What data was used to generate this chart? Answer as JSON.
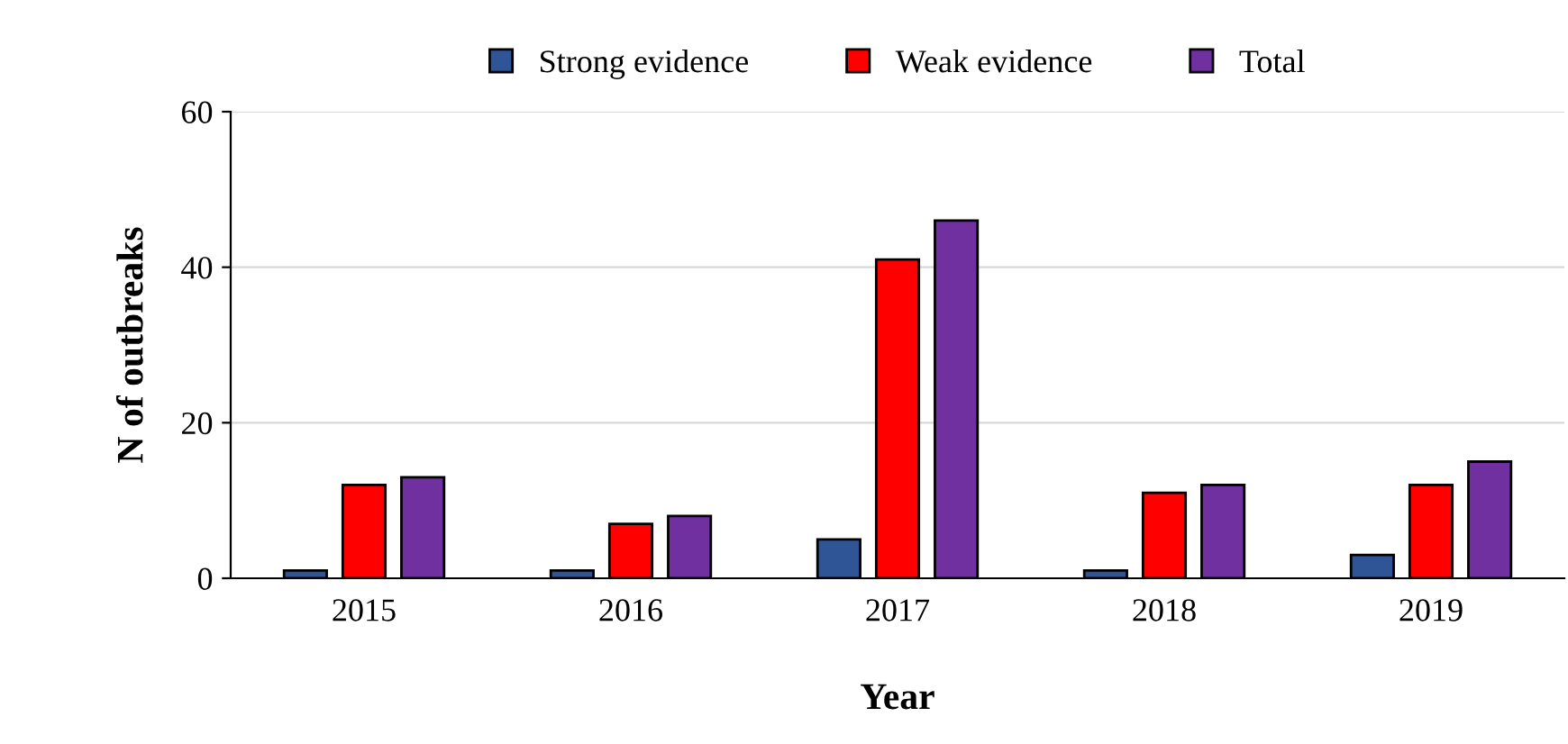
{
  "chart_data": {
    "type": "bar",
    "xlabel": "Year",
    "ylabel": "N of outbreaks",
    "categories": [
      "2015",
      "2016",
      "2017",
      "2018",
      "2019"
    ],
    "series": [
      {
        "name": "Strong evidence",
        "color": "#2f5597",
        "values": [
          1,
          1,
          5,
          1,
          3
        ]
      },
      {
        "name": "Weak evidence",
        "color": "#ff0000",
        "values": [
          12,
          7,
          41,
          11,
          12
        ]
      },
      {
        "name": "Total",
        "color": "#7030a0",
        "values": [
          13,
          8,
          46,
          12,
          15
        ]
      }
    ],
    "ylim": [
      0,
      60
    ],
    "yticks": [
      0,
      20,
      40,
      60
    ],
    "grid": "y",
    "legend": "top"
  }
}
